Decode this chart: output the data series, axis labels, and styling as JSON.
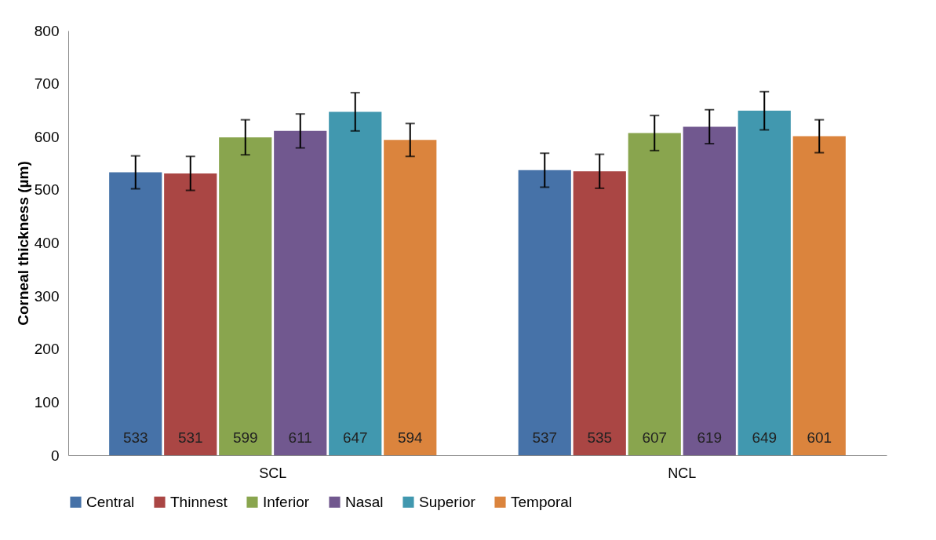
{
  "chart_data": {
    "type": "bar",
    "ylabel": "Corneal thickness (µm)",
    "categories": [
      "SCL",
      "NCL"
    ],
    "series": [
      {
        "name": "Central",
        "color": "#4672a8",
        "values": [
          533,
          537
        ],
        "errors": [
          31,
          32
        ]
      },
      {
        "name": "Thinnest",
        "color": "#aa4644",
        "values": [
          531,
          535
        ],
        "errors": [
          32,
          32
        ]
      },
      {
        "name": "Inferior",
        "color": "#89a54e",
        "values": [
          599,
          607
        ],
        "errors": [
          33,
          33
        ]
      },
      {
        "name": "Nasal",
        "color": "#71588f",
        "values": [
          611,
          619
        ],
        "errors": [
          32,
          32
        ]
      },
      {
        "name": "Superior",
        "color": "#4198af",
        "values": [
          647,
          649
        ],
        "errors": [
          36,
          36
        ]
      },
      {
        "name": "Temporal",
        "color": "#db843d",
        "values": [
          594,
          601
        ],
        "errors": [
          31,
          31
        ]
      }
    ],
    "ylim": [
      0,
      800
    ],
    "yticks": [
      0,
      100,
      200,
      300,
      400,
      500,
      600,
      700,
      800
    ],
    "grid": false,
    "legend": "bottom",
    "data_labels": true
  }
}
